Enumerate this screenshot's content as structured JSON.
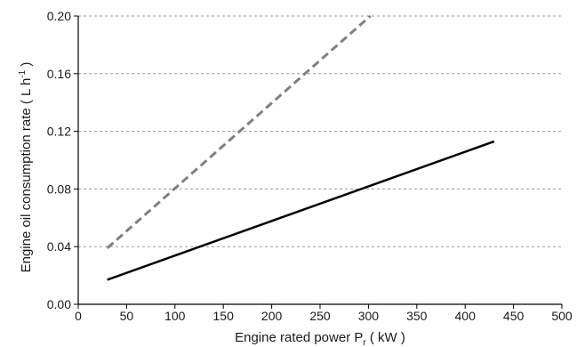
{
  "chart_data": {
    "type": "line",
    "xlabel": {
      "main": "Engine rated power P",
      "sub": "r",
      "unit": " ( kW )"
    },
    "ylabel": {
      "main": "Engine oil consumption rate ( L h",
      "sup": "-1",
      "end": " )"
    },
    "xlim": [
      0,
      500
    ],
    "ylim": [
      0.0,
      0.2
    ],
    "x_ticks": [
      0,
      50,
      100,
      150,
      200,
      250,
      300,
      350,
      400,
      450,
      500
    ],
    "x_tick_labels": [
      "0",
      "50",
      "100",
      "150",
      "200",
      "250",
      "300",
      "350",
      "400",
      "450",
      "500"
    ],
    "y_ticks": [
      0.0,
      0.04,
      0.08,
      0.12,
      0.16,
      0.2
    ],
    "y_tick_labels": [
      "0.00",
      "0.04",
      "0.08",
      "0.12",
      "0.16",
      "0.20"
    ],
    "grid": "horizontal dashed",
    "series": [
      {
        "style": "solid",
        "color": "#000000",
        "x": [
          30,
          430
        ],
        "y": [
          0.017,
          0.113
        ]
      },
      {
        "style": "dashed",
        "color": "#808080",
        "x": [
          30,
          302
        ],
        "y": [
          0.039,
          0.2
        ]
      }
    ]
  }
}
